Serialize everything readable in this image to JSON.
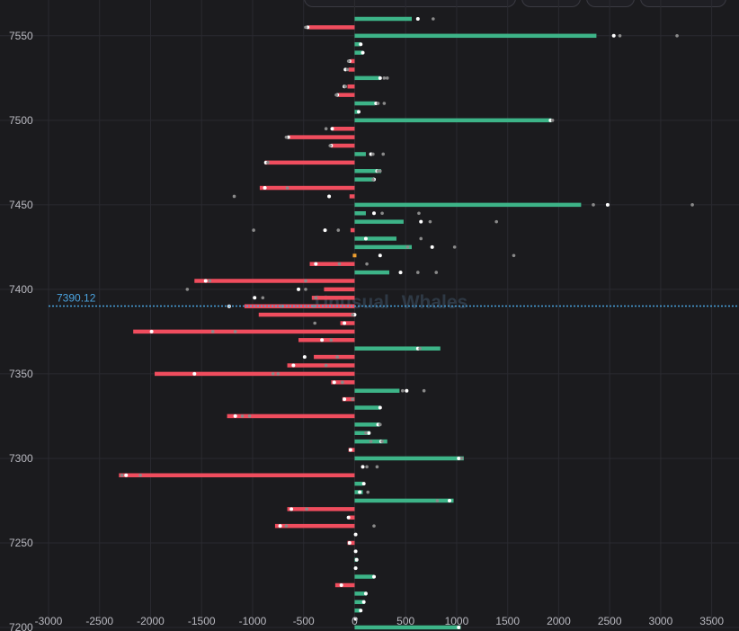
{
  "watermark": {
    "part1": "Unusual",
    "part2": "Whales"
  },
  "colors": {
    "positive": "#3db488",
    "negative": "#f04d5e",
    "price_line": "#4aa3df",
    "grid": "#2a2a30",
    "background": "#1b1b1e",
    "marker_white": "#ffffff",
    "marker_gray": "#8a8a8a",
    "marker_orange": "#f0a030"
  },
  "chart_data": {
    "type": "bar",
    "orientation": "horizontal",
    "xlim": [
      -3000,
      3600
    ],
    "ylim": [
      7200,
      7560
    ],
    "x_ticks": [
      -3000,
      -2500,
      -2000,
      -1500,
      -1000,
      -500,
      0,
      500,
      1000,
      1500,
      2000,
      2500,
      3000,
      3500
    ],
    "y_ticks": [
      7200,
      7250,
      7300,
      7350,
      7400,
      7450,
      7500,
      7550
    ],
    "current_price": {
      "value": 7390.12,
      "label": "7390.12"
    },
    "bars": [
      {
        "strike": 7560,
        "value": 560,
        "markers": [
          620,
          770
        ]
      },
      {
        "strike": 7555,
        "value": -450,
        "markers": [
          -460,
          -480
        ]
      },
      {
        "strike": 7550,
        "value": 2370,
        "markers": [
          2540,
          2600,
          3160
        ]
      },
      {
        "strike": 7545,
        "value": 60,
        "markers": [
          60
        ]
      },
      {
        "strike": 7540,
        "value": 80,
        "markers": [
          80
        ]
      },
      {
        "strike": 7535,
        "value": -40,
        "markers": [
          -50,
          -60
        ]
      },
      {
        "strike": 7530,
        "value": -60,
        "markers": [
          -90,
          -70
        ]
      },
      {
        "strike": 7525,
        "value": 250,
        "markers": [
          250,
          290,
          320
        ]
      },
      {
        "strike": 7520,
        "value": -70,
        "markers": [
          -100,
          -90
        ]
      },
      {
        "strike": 7515,
        "value": -160,
        "markers": [
          -170,
          -180
        ]
      },
      {
        "strike": 7510,
        "value": 200,
        "markers": [
          210,
          230,
          290
        ]
      },
      {
        "strike": 7505,
        "value": 40,
        "markers": [
          40
        ]
      },
      {
        "strike": 7500,
        "value": 1930,
        "markers": [
          1920,
          1940
        ]
      },
      {
        "strike": 7495,
        "value": -220,
        "markers": [
          -220,
          -280
        ]
      },
      {
        "strike": 7490,
        "value": -640,
        "markers": [
          -650,
          -670
        ]
      },
      {
        "strike": 7485,
        "value": -230,
        "markers": [
          -230,
          -240
        ]
      },
      {
        "strike": 7480,
        "value": 110,
        "markers": [
          160,
          180,
          280
        ]
      },
      {
        "strike": 7475,
        "value": -880,
        "markers": [
          -870,
          -850
        ]
      },
      {
        "strike": 7470,
        "value": 260,
        "markers": [
          220,
          250,
          230
        ]
      },
      {
        "strike": 7465,
        "value": 190,
        "markers": [
          190,
          180
        ]
      },
      {
        "strike": 7460,
        "value": -930,
        "markers": [
          -880,
          -660
        ]
      },
      {
        "strike": 7455,
        "value": -50,
        "markers": [
          -250,
          -1180
        ]
      },
      {
        "strike": 7450,
        "value": 2220,
        "markers": [
          2480,
          2340,
          3310
        ]
      },
      {
        "strike": 7445,
        "value": 110,
        "markers": [
          190,
          270,
          630
        ]
      },
      {
        "strike": 7440,
        "value": 480,
        "markers": [
          650,
          740,
          1390
        ]
      },
      {
        "strike": 7435,
        "value": -40,
        "markers": [
          -290,
          -160,
          -990
        ]
      },
      {
        "strike": 7430,
        "value": 410,
        "markers": [
          110,
          650
        ]
      },
      {
        "strike": 7425,
        "value": 560,
        "markers": [
          760,
          980,
          520
        ]
      },
      {
        "strike": 7420,
        "value": 0,
        "markers": [
          250,
          1560
        ],
        "color": "marker_orange"
      },
      {
        "strike": 7415,
        "value": -440,
        "markers": [
          -380,
          -150,
          120
        ]
      },
      {
        "strike": 7410,
        "value": 340,
        "markers": [
          450,
          800,
          620
        ]
      },
      {
        "strike": 7405,
        "value": -1570,
        "markers": [
          -1460,
          -1420,
          -480
        ]
      },
      {
        "strike": 7400,
        "value": -300,
        "markers": [
          -550,
          -480,
          -1640
        ]
      },
      {
        "strike": 7395,
        "value": -420,
        "markers": [
          -980,
          -900,
          -380
        ]
      },
      {
        "strike": 7390,
        "value": -1080,
        "markers": [
          -1230,
          -710,
          -400
        ]
      },
      {
        "strike": 7385,
        "value": -940,
        "markers": [
          0,
          -20
        ]
      },
      {
        "strike": 7380,
        "value": -140,
        "markers": [
          -100,
          -390
        ]
      },
      {
        "strike": 7375,
        "value": -2170,
        "markers": [
          -1990,
          -1390,
          -1170
        ]
      },
      {
        "strike": 7370,
        "value": -550,
        "markers": [
          -320,
          -230
        ]
      },
      {
        "strike": 7365,
        "value": 840,
        "markers": [
          620,
          640
        ]
      },
      {
        "strike": 7360,
        "value": -400,
        "markers": [
          -490,
          -170
        ]
      },
      {
        "strike": 7355,
        "value": -660,
        "markers": [
          -600,
          -280
        ]
      },
      {
        "strike": 7350,
        "value": -1960,
        "markers": [
          -1570,
          -800,
          -750
        ]
      },
      {
        "strike": 7345,
        "value": -230,
        "markers": [
          -200,
          -120
        ]
      },
      {
        "strike": 7340,
        "value": 440,
        "markers": [
          510,
          470,
          680
        ]
      },
      {
        "strike": 7335,
        "value": -120,
        "markers": [
          -100,
          -20
        ]
      },
      {
        "strike": 7330,
        "value": 250,
        "markers": [
          250
        ]
      },
      {
        "strike": 7325,
        "value": -1250,
        "markers": [
          -1170,
          -1100,
          -1030
        ]
      },
      {
        "strike": 7320,
        "value": 250,
        "markers": [
          230,
          250
        ]
      },
      {
        "strike": 7315,
        "value": 150,
        "markers": [
          140,
          110
        ]
      },
      {
        "strike": 7310,
        "value": 320,
        "markers": [
          260,
          270,
          160
        ]
      },
      {
        "strike": 7305,
        "value": -60,
        "markers": [
          -40
        ]
      },
      {
        "strike": 7300,
        "value": 1070,
        "markers": [
          1020,
          1050
        ]
      },
      {
        "strike": 7295,
        "value": 0,
        "markers": [
          80,
          120,
          220
        ]
      },
      {
        "strike": 7290,
        "value": -2310,
        "markers": [
          -2240,
          -2100,
          -2280
        ]
      },
      {
        "strike": 7285,
        "value": 80,
        "markers": [
          90
        ]
      },
      {
        "strike": 7280,
        "value": 80,
        "markers": [
          50,
          130
        ]
      },
      {
        "strike": 7275,
        "value": 970,
        "markers": [
          930,
          810
        ]
      },
      {
        "strike": 7270,
        "value": -660,
        "markers": [
          -620,
          -470
        ]
      },
      {
        "strike": 7265,
        "value": -60,
        "markers": [
          -60
        ]
      },
      {
        "strike": 7260,
        "value": -780,
        "markers": [
          -730,
          -670,
          190
        ]
      },
      {
        "strike": 7255,
        "value": 0,
        "markers": [
          10
        ]
      },
      {
        "strike": 7250,
        "value": -70,
        "markers": [
          -50
        ]
      },
      {
        "strike": 7245,
        "value": 0,
        "markers": [
          10
        ]
      },
      {
        "strike": 7240,
        "value": 30,
        "markers": [
          20
        ]
      },
      {
        "strike": 7235,
        "value": 0,
        "markers": [
          10
        ]
      },
      {
        "strike": 7230,
        "value": 190,
        "markers": [
          190
        ]
      },
      {
        "strike": 7225,
        "value": -190,
        "markers": [
          -130
        ]
      },
      {
        "strike": 7220,
        "value": 120,
        "markers": [
          110
        ]
      },
      {
        "strike": 7215,
        "value": 100,
        "markers": [
          90
        ]
      },
      {
        "strike": 7210,
        "value": 60,
        "markers": [
          60
        ]
      },
      {
        "strike": 7205,
        "value": 0,
        "markers": [
          10
        ]
      },
      {
        "strike": 7200,
        "value": 1040,
        "markers": [
          1020
        ]
      }
    ]
  }
}
